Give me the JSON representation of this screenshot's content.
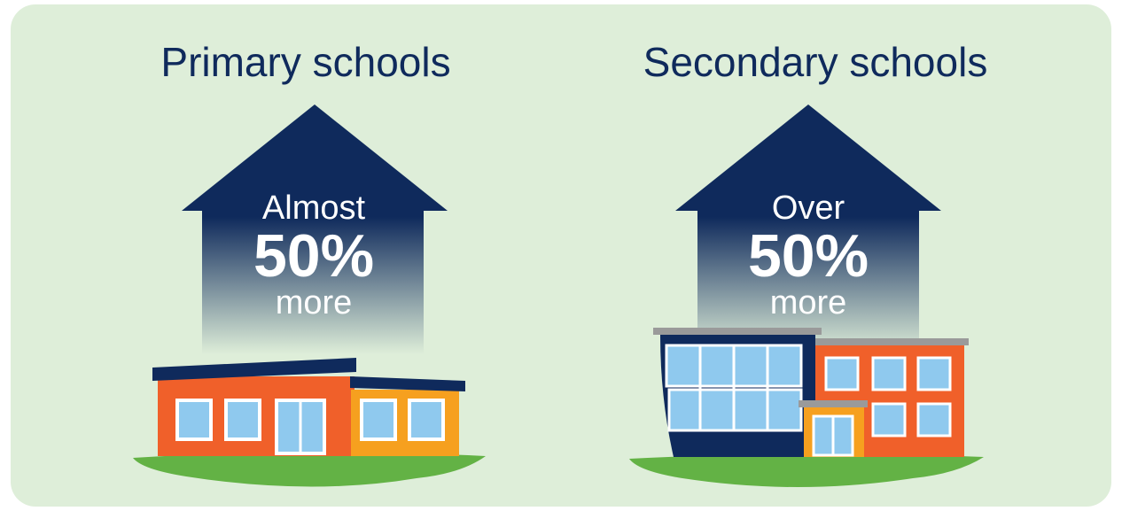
{
  "panels": [
    {
      "title": "Primary schools",
      "prefix": "Almost",
      "value": "50%",
      "suffix": "more"
    },
    {
      "title": "Secondary schools",
      "prefix": "Over",
      "value": "50%",
      "suffix": "more"
    }
  ]
}
